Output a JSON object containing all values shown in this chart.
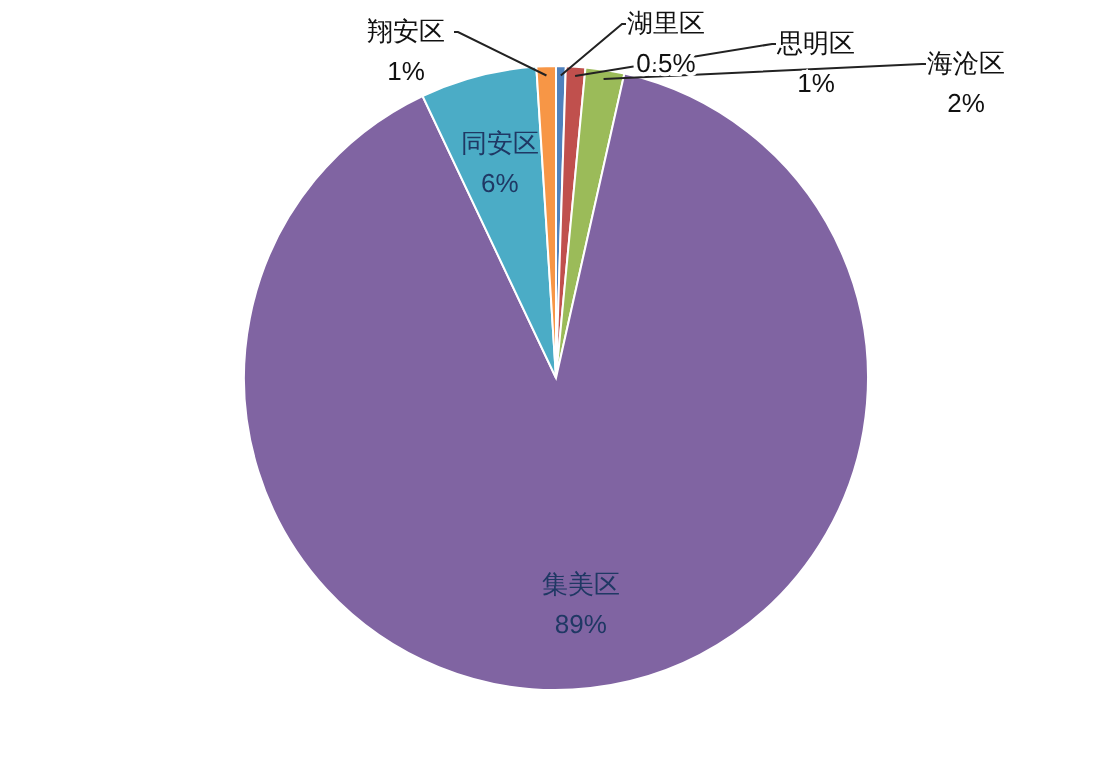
{
  "chart_data": {
    "type": "pie",
    "categories": [
      "湖里区",
      "思明区",
      "海沧区",
      "集美区",
      "同安区",
      "翔安区"
    ],
    "values": [
      0.5,
      1,
      2,
      89,
      6,
      1
    ],
    "colors": [
      "#4f81bd",
      "#c0504d",
      "#9bbb59",
      "#8064a2",
      "#4bacc6",
      "#f79646"
    ],
    "value_labels": [
      "0.5%",
      "1%",
      "2%",
      "89%",
      "6%",
      "1%"
    ]
  }
}
